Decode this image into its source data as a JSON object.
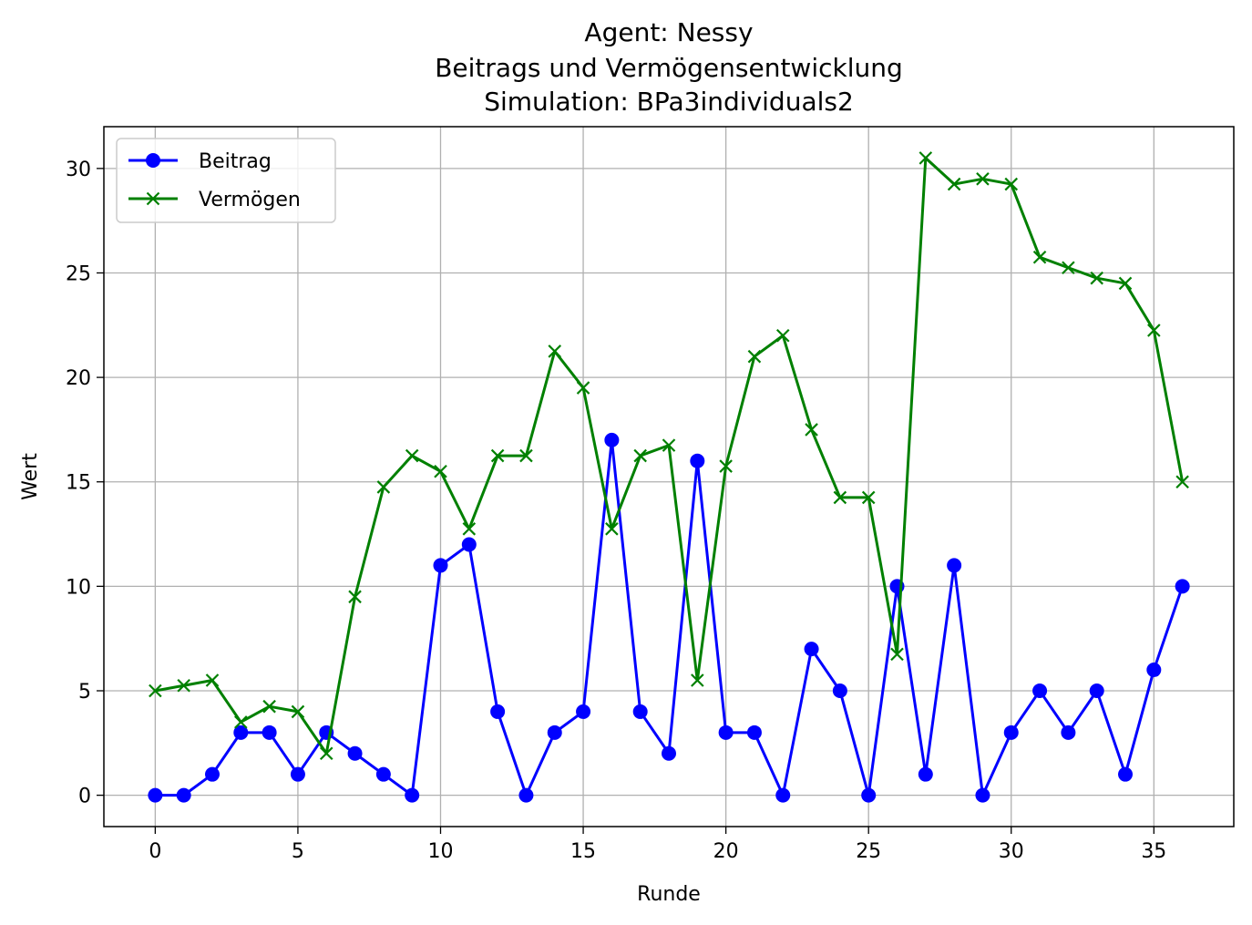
{
  "chart_data": {
    "type": "line",
    "title_lines": [
      "Agent: Nessy",
      "Beitrags und Vermögensentwicklung",
      "Simulation: BPa3individuals2"
    ],
    "xlabel": "Runde",
    "ylabel": "Wert",
    "xlim": [
      -1.8,
      37.8
    ],
    "ylim": [
      -1.5,
      32.0
    ],
    "xticks": [
      0,
      5,
      10,
      15,
      20,
      25,
      30,
      35
    ],
    "yticks": [
      0,
      5,
      10,
      15,
      20,
      25,
      30
    ],
    "grid": true,
    "legend_position": "upper-left",
    "x": [
      0,
      1,
      2,
      3,
      4,
      5,
      6,
      7,
      8,
      9,
      10,
      11,
      12,
      13,
      14,
      15,
      16,
      17,
      18,
      19,
      20,
      21,
      22,
      23,
      24,
      25,
      26,
      27,
      28,
      29,
      30,
      31,
      32,
      33,
      34,
      35,
      36
    ],
    "series": [
      {
        "name": "Beitrag",
        "color": "#0000ff",
        "marker": "circle",
        "values": [
          0,
          0,
          1,
          3,
          3,
          1,
          3,
          2,
          1,
          0,
          11,
          12,
          4,
          0,
          3,
          4,
          17,
          4,
          2,
          16,
          3,
          3,
          0,
          7,
          5,
          0,
          10,
          1,
          11,
          0,
          3,
          5,
          3,
          5,
          1,
          6,
          10
        ]
      },
      {
        "name": "Vermögen",
        "color": "#008000",
        "marker": "x",
        "values": [
          5.0,
          5.25,
          5.5,
          3.5,
          4.25,
          4.0,
          2.0,
          9.5,
          14.75,
          16.25,
          15.5,
          12.75,
          16.25,
          16.25,
          21.25,
          19.5,
          12.75,
          16.25,
          16.75,
          5.5,
          15.75,
          21.0,
          22.0,
          17.5,
          14.25,
          14.25,
          6.75,
          30.5,
          29.25,
          29.5,
          29.25,
          25.75,
          25.25,
          24.75,
          24.5,
          22.25,
          15.0
        ]
      }
    ]
  }
}
